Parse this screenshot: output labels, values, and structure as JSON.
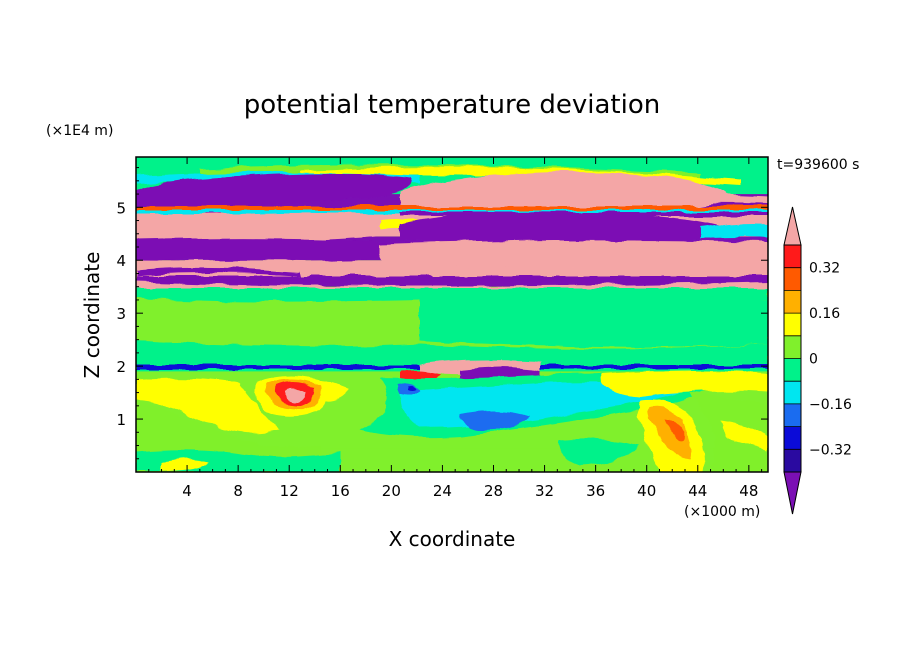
{
  "chart_data": {
    "type": "heatmap",
    "title": "potential temperature deviation",
    "xlabel": "X coordinate",
    "ylabel": "Z coordinate",
    "x_unit": "(×1000 m)",
    "y_unit": "(×1E4 m)",
    "time_label": "t=939600 s",
    "xlim": [
      0,
      49.5
    ],
    "ylim": [
      0,
      5.95
    ],
    "x_ticks": [
      4,
      8,
      12,
      16,
      20,
      24,
      28,
      32,
      36,
      40,
      44,
      48
    ],
    "y_ticks": [
      1,
      2,
      3,
      4,
      5
    ],
    "colorbar": {
      "levels": [
        -0.4,
        -0.32,
        -0.24,
        -0.16,
        -0.08,
        0,
        0.08,
        0.16,
        0.24,
        0.32,
        0.4
      ],
      "tick_labels": [
        -0.32,
        -0.16,
        0,
        0.16,
        0.32
      ],
      "extend": "both",
      "under_color": "#7b0fb4",
      "over_color": "#f4a6a6",
      "colors": [
        "#2a0aa0",
        "#0b0bd8",
        "#1a6cf0",
        "#00e6f0",
        "#00f28a",
        "#80f02c",
        "#ffff00",
        "#ffb000",
        "#ff5a00",
        "#ff1a1a"
      ]
    },
    "bands": [
      {
        "z": [
          0.0,
          0.45
        ],
        "fill": "#80f02c"
      },
      {
        "z": [
          0.45,
          1.9
        ],
        "fill": "#80f02c"
      },
      {
        "z": [
          1.9,
          2.05
        ],
        "fill": "#00f28a"
      },
      {
        "z": [
          2.05,
          3.5
        ],
        "fill": "#80f02c"
      },
      {
        "z": [
          3.5,
          3.65
        ],
        "fill": "#7b0fb4"
      },
      {
        "z": [
          3.65,
          4.0
        ],
        "fill": "#f4a6a6"
      },
      {
        "z": [
          4.0,
          4.45
        ],
        "fill": "#7b0fb4"
      },
      {
        "z": [
          4.45,
          4.9
        ],
        "fill": "#f4a6a6"
      },
      {
        "z": [
          4.9,
          5.25
        ],
        "fill": "#7b0fb4"
      },
      {
        "z": [
          5.25,
          5.95
        ],
        "fill": "#00f28a"
      }
    ]
  }
}
